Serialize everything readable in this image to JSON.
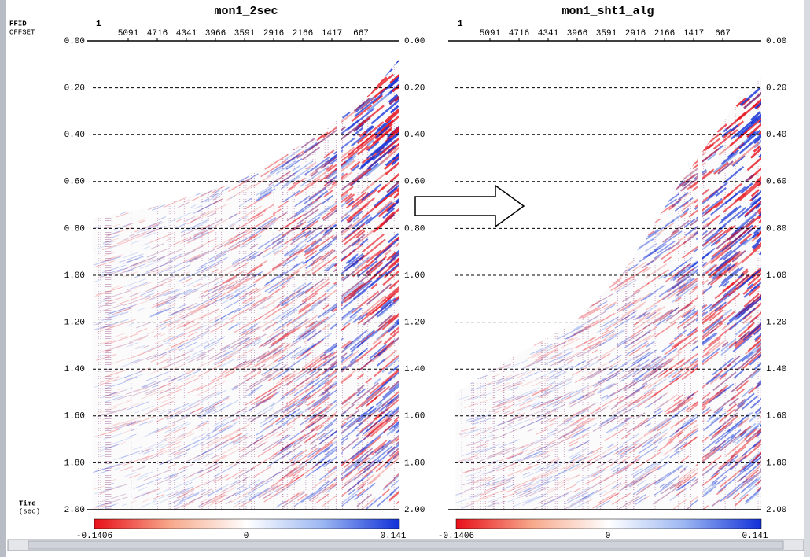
{
  "left_axis": {
    "ffid": "FFID",
    "offset": "OFFSET",
    "time": "Time",
    "time_unit": "(sec)"
  },
  "panels": [
    {
      "title": "mon1_2sec",
      "ffid": "1",
      "offsets": [
        "5091",
        "4716",
        "4341",
        "3966",
        "3591",
        "2916",
        "2166",
        "1417",
        "667"
      ],
      "time_ticks": [
        "0.00",
        "0.20",
        "0.40",
        "0.60",
        "0.80",
        "1.00",
        "1.20",
        "1.40",
        "1.60",
        "1.80",
        "2.00"
      ],
      "colorbar": {
        "min": "-0.1406",
        "mid": "0",
        "max": "0.141"
      }
    },
    {
      "title": "mon1_sht1_alg",
      "ffid": "1",
      "offsets": [
        "5091",
        "4716",
        "4341",
        "3966",
        "3591",
        "2916",
        "2166",
        "1417",
        "667"
      ],
      "time_ticks": [
        "0.00",
        "0.20",
        "0.40",
        "0.60",
        "0.80",
        "1.00",
        "1.20",
        "1.40",
        "1.60",
        "1.80",
        "2.00"
      ],
      "colorbar": {
        "min": "-0.1406",
        "mid": "0",
        "max": "0.141"
      }
    }
  ]
}
